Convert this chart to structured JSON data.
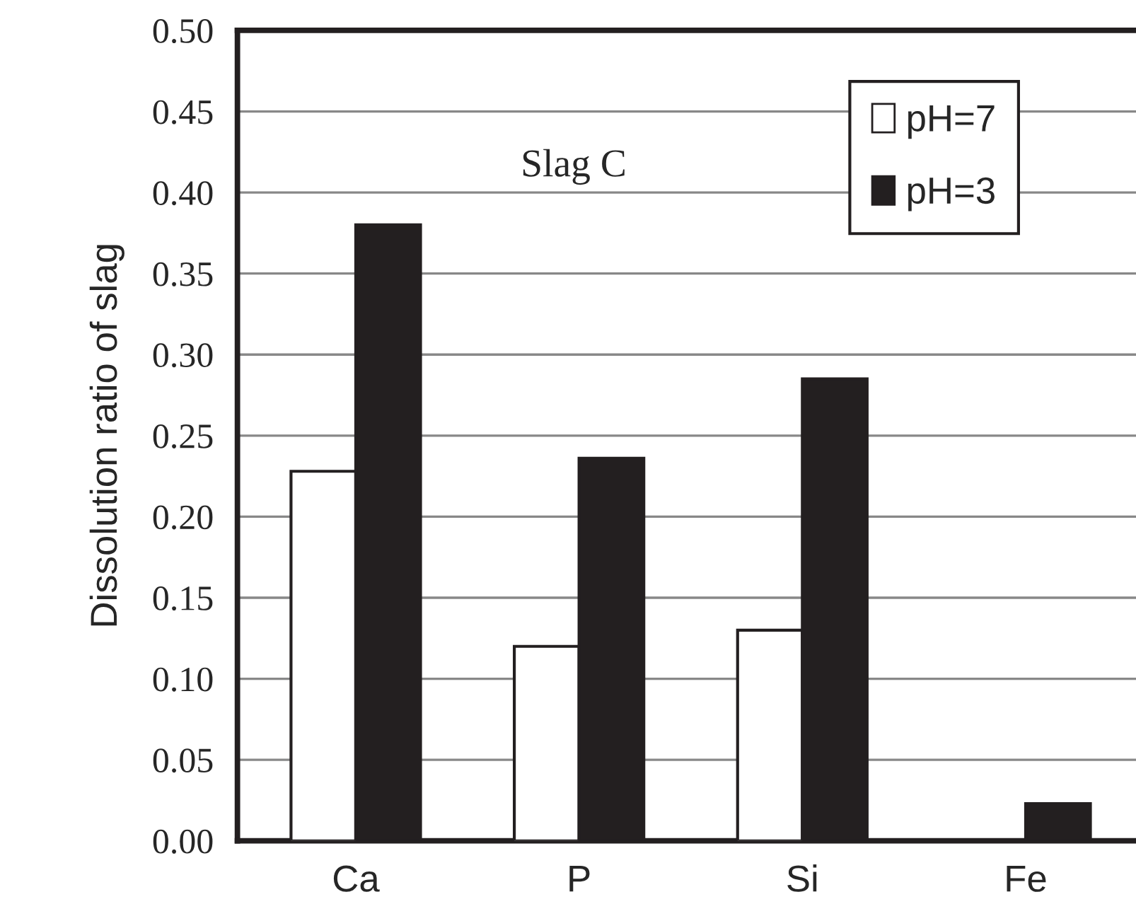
{
  "chart_data": {
    "type": "bar",
    "ylabel": "Dissolution ratio of slag",
    "categories": [
      "Ca",
      "P",
      "Si",
      "Fe"
    ],
    "series": [
      {
        "name": "pH=7",
        "color": "#ffffff",
        "values": [
          0.228,
          0.12,
          0.13,
          null
        ]
      },
      {
        "name": "pH=3",
        "color": "#231f20",
        "values": [
          0.38,
          0.236,
          0.285,
          0.023
        ]
      }
    ],
    "ylim": [
      0,
      0.5
    ],
    "yticks": [
      {
        "value": 0,
        "label": "0.00"
      },
      {
        "value": 0.05,
        "label": "0.05"
      },
      {
        "value": 0.1,
        "label": "0.10"
      },
      {
        "value": 0.15,
        "label": "0.15"
      },
      {
        "value": 0.2,
        "label": "0.20"
      },
      {
        "value": 0.25,
        "label": "0.25"
      },
      {
        "value": 0.3,
        "label": "0.30"
      },
      {
        "value": 0.35,
        "label": "0.35"
      },
      {
        "value": 0.4,
        "label": "0.40"
      },
      {
        "value": 0.45,
        "label": "0.45"
      },
      {
        "value": 0.5,
        "label": "0.50"
      }
    ],
    "grid": "y",
    "legend": "top right",
    "annotations": [
      "Slag C"
    ]
  }
}
